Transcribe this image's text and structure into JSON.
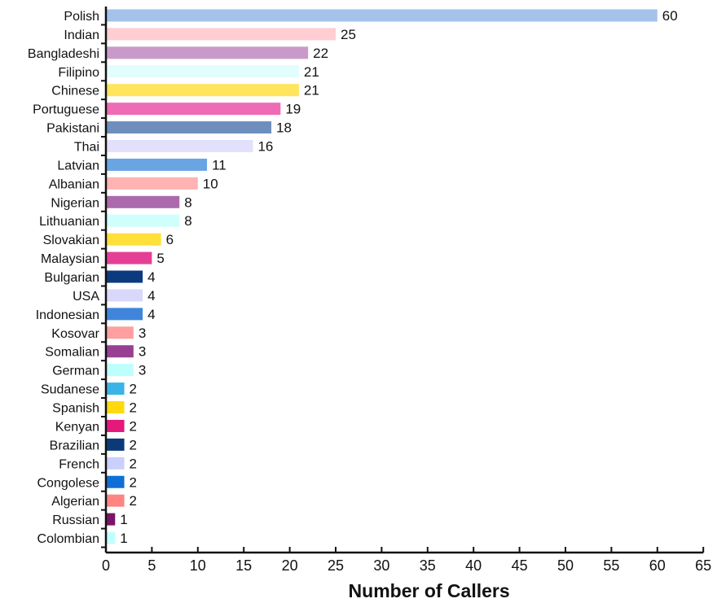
{
  "chart_data": {
    "type": "bar",
    "orientation": "horizontal",
    "xlabel": "Number of Callers",
    "ylabel": "",
    "title": "",
    "xlim": [
      0,
      65
    ],
    "xticks": [
      0,
      5,
      10,
      15,
      20,
      25,
      30,
      35,
      40,
      45,
      50,
      55,
      60,
      65
    ],
    "grid": false,
    "legend": "none",
    "categories": [
      "Polish",
      "Indian",
      "Bangladeshi",
      "Filipino",
      "Chinese",
      "Portuguese",
      "Pakistani",
      "Thai",
      "Latvian",
      "Albanian",
      "Nigerian",
      "Lithuanian",
      "Slovakian",
      "Malaysian",
      "Bulgarian",
      "USA",
      "Indonesian",
      "Kosovar",
      "Somalian",
      "German",
      "Sudanese",
      "Spanish",
      "Kenyan",
      "Brazilian",
      "French",
      "Congolese",
      "Algerian",
      "Russian",
      "Colombian"
    ],
    "values": [
      60,
      25,
      22,
      21,
      21,
      19,
      18,
      16,
      11,
      10,
      8,
      8,
      6,
      5,
      4,
      4,
      4,
      3,
      3,
      3,
      2,
      2,
      2,
      2,
      2,
      2,
      2,
      1,
      1
    ],
    "colors": [
      "#a4c2ea",
      "#ffcdd2",
      "#c99ac9",
      "#e2fdfd",
      "#ffe45c",
      "#ee6bb5",
      "#6e8fbd",
      "#e2e0fb",
      "#6aa5e3",
      "#ffb3b3",
      "#ab6aab",
      "#cffffb",
      "#ffe03a",
      "#e53f95",
      "#0c3a7f",
      "#d9d8fb",
      "#3f86db",
      "#ff9f9f",
      "#983f93",
      "#bdfffd",
      "#3bb3e6",
      "#ffd90e",
      "#e5187c",
      "#0c3a78",
      "#cacffb",
      "#0f6fd6",
      "#ff8484",
      "#7a1468",
      "#c0ffff"
    ]
  }
}
